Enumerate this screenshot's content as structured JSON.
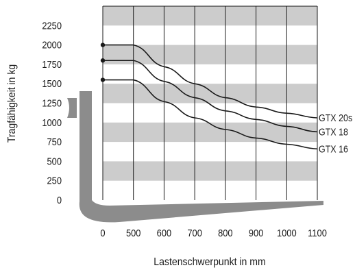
{
  "chart_data": {
    "type": "line",
    "title": "",
    "xlabel": "Lastenschwerpunkt in mm",
    "ylabel": "Tragfähigkeit in kg",
    "x_ticks": [
      "0",
      "500",
      "600",
      "700",
      "800",
      "900",
      "1000",
      "1100"
    ],
    "x_tick_values": [
      0,
      500,
      600,
      700,
      800,
      900,
      1000,
      1100
    ],
    "y_ticks": [
      "0",
      "250",
      "500",
      "750",
      "1000",
      "1250",
      "1500",
      "1750",
      "2000",
      "2250"
    ],
    "y_tick_values": [
      0,
      250,
      500,
      750,
      1000,
      1250,
      1500,
      1750,
      2000,
      2250
    ],
    "ylim": [
      0,
      2500
    ],
    "xlim": [
      0,
      1100
    ],
    "grid": "horizontal gray bands and vertical gridlines",
    "legend": "series labels at right end of each curve",
    "colors": {
      "line": "#1a1a1a",
      "band": "#cccccc",
      "fork": "#8c8c8c"
    },
    "series": [
      {
        "name": "GTX 20s",
        "x": [
          0,
          500,
          600,
          700,
          800,
          900,
          1000,
          1100
        ],
        "values": [
          2000,
          2000,
          1720,
          1500,
          1320,
          1200,
          1120,
          1060
        ]
      },
      {
        "name": "GTX 18",
        "x": [
          0,
          500,
          600,
          700,
          800,
          900,
          1000,
          1100
        ],
        "values": [
          1800,
          1800,
          1530,
          1320,
          1150,
          1040,
          950,
          880
        ]
      },
      {
        "name": "GTX 16",
        "x": [
          0,
          500,
          600,
          700,
          800,
          900,
          1000,
          1100
        ],
        "values": [
          1550,
          1550,
          1270,
          1060,
          910,
          800,
          720,
          660
        ]
      }
    ]
  }
}
